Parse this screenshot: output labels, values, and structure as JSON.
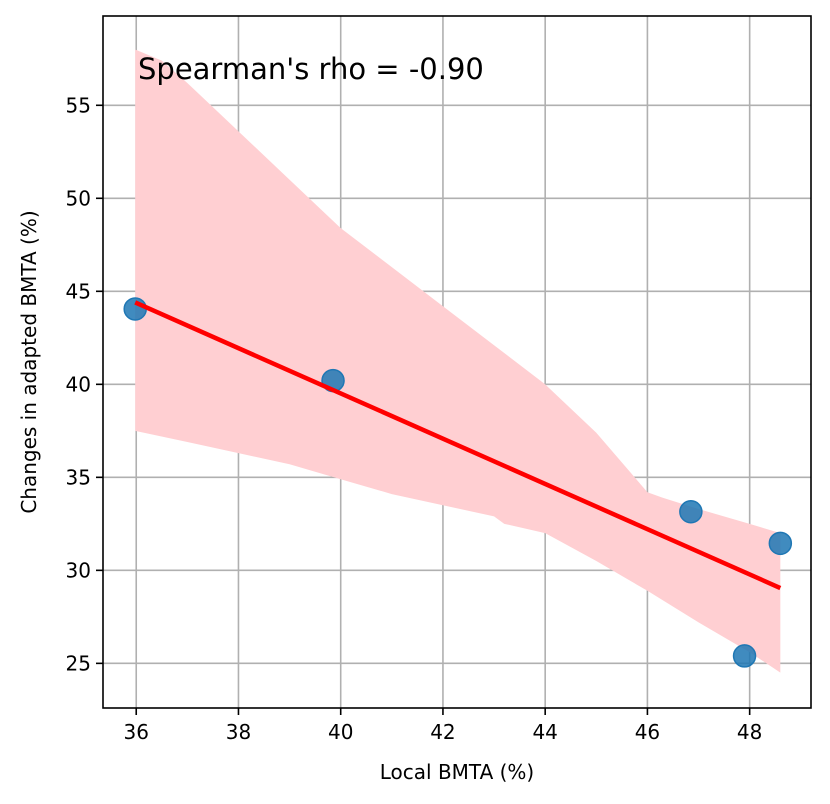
{
  "chart_data": {
    "type": "scatter",
    "title": "",
    "xlabel": "Local BMTA (%)",
    "ylabel": "Changes in adapted BMTA (%)",
    "xlim": [
      35.35,
      49.2
    ],
    "ylim": [
      22.6,
      59.8
    ],
    "xticks": [
      36,
      38,
      40,
      42,
      44,
      46,
      48
    ],
    "yticks": [
      25,
      30,
      35,
      40,
      45,
      50,
      55
    ],
    "grid": true,
    "annotation": "Spearman's rho = -0.90",
    "points": [
      {
        "x": 35.98,
        "y": 44.05
      },
      {
        "x": 39.85,
        "y": 40.2
      },
      {
        "x": 46.85,
        "y": 33.15
      },
      {
        "x": 47.9,
        "y": 25.4
      },
      {
        "x": 48.6,
        "y": 31.45
      }
    ],
    "regression": {
      "x": [
        35.98,
        48.6
      ],
      "y": [
        44.4,
        29.05
      ]
    },
    "confidence_band": {
      "upper": [
        [
          35.98,
          58.0
        ],
        [
          36.5,
          57.4
        ],
        [
          37.0,
          56.2
        ],
        [
          38.0,
          53.6
        ],
        [
          39.0,
          51.0
        ],
        [
          40.0,
          48.4
        ],
        [
          41.0,
          46.3
        ],
        [
          42.0,
          44.2
        ],
        [
          43.0,
          42.1
        ],
        [
          44.0,
          40.0
        ],
        [
          45.0,
          37.4
        ],
        [
          46.0,
          34.2
        ],
        [
          46.3,
          33.9
        ],
        [
          47.0,
          33.3
        ],
        [
          48.0,
          32.5
        ],
        [
          48.6,
          32.0
        ]
      ],
      "lower": [
        [
          35.98,
          37.5
        ],
        [
          37.0,
          36.9
        ],
        [
          38.0,
          36.3
        ],
        [
          39.0,
          35.7
        ],
        [
          40.0,
          34.9
        ],
        [
          41.0,
          34.1
        ],
        [
          42.0,
          33.5
        ],
        [
          43.0,
          32.9
        ],
        [
          43.2,
          32.5
        ],
        [
          44.0,
          32.0
        ],
        [
          45.0,
          30.5
        ],
        [
          46.0,
          28.9
        ],
        [
          47.0,
          27.2
        ],
        [
          48.0,
          25.6
        ],
        [
          48.6,
          24.5
        ]
      ]
    },
    "colors": {
      "points": "#1f77b4",
      "line": "#ff0000",
      "band": "#ffcfd2",
      "grid": "#b0b0b0"
    }
  }
}
